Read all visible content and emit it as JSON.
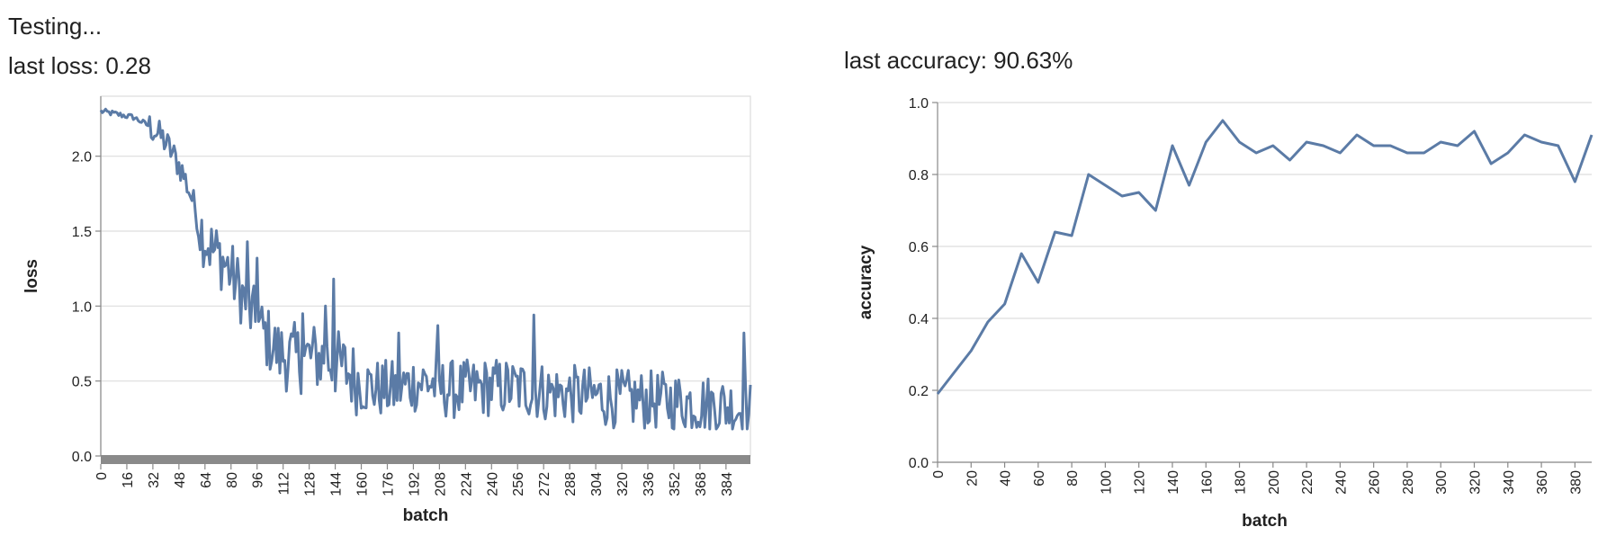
{
  "status": "Testing...",
  "loss_panel": {
    "label": "last loss: ",
    "value": "0.28"
  },
  "accuracy_panel": {
    "label": "last accuracy: ",
    "value": "90.63%"
  },
  "colors": {
    "line": "#5b7ba6",
    "grid": "#dddddd",
    "axis": "#888888",
    "text": "#222222",
    "bar": "#8a8a8a"
  },
  "chart_data": [
    {
      "id": "loss",
      "type": "line",
      "xlabel": "batch",
      "ylabel": "loss",
      "xlim": [
        0,
        399
      ],
      "ylim": [
        0,
        2.4
      ],
      "xticks": [
        0,
        16,
        32,
        48,
        64,
        80,
        96,
        112,
        128,
        144,
        160,
        176,
        192,
        208,
        224,
        240,
        256,
        272,
        288,
        304,
        320,
        336,
        352,
        368,
        384
      ],
      "yticks": [
        0.0,
        0.5,
        1.0,
        1.5,
        2.0
      ],
      "ytick_labels": [
        "0.0",
        "0.5",
        "1.0",
        "1.5",
        "2.0"
      ],
      "grid": true,
      "series": [
        {
          "keypoints": [
            [
              0,
              2.3
            ],
            [
              10,
              2.28
            ],
            [
              20,
              2.26
            ],
            [
              30,
              2.2
            ],
            [
              38,
              2.12
            ],
            [
              44,
              2.02
            ],
            [
              50,
              1.9
            ],
            [
              56,
              1.72
            ],
            [
              62,
              1.5
            ],
            [
              68,
              1.38
            ],
            [
              74,
              1.32
            ],
            [
              80,
              1.22
            ],
            [
              86,
              1.1
            ],
            [
              92,
              0.95
            ],
            [
              98,
              0.85
            ],
            [
              104,
              0.76
            ],
            [
              110,
              0.68
            ],
            [
              120,
              0.65
            ],
            [
              130,
              0.66
            ],
            [
              140,
              0.64
            ],
            [
              150,
              0.58
            ],
            [
              160,
              0.48
            ],
            [
              170,
              0.45
            ],
            [
              180,
              0.44
            ],
            [
              190,
              0.48
            ],
            [
              200,
              0.5
            ],
            [
              210,
              0.45
            ],
            [
              220,
              0.44
            ],
            [
              240,
              0.46
            ],
            [
              260,
              0.45
            ],
            [
              280,
              0.42
            ],
            [
              300,
              0.4
            ],
            [
              320,
              0.38
            ],
            [
              340,
              0.37
            ],
            [
              360,
              0.36
            ],
            [
              380,
              0.34
            ],
            [
              399,
              0.3
            ]
          ],
          "spikes": [
            [
              90,
              1.43
            ],
            [
              96,
              1.32
            ],
            [
              124,
              0.95
            ],
            [
              138,
              1.0
            ],
            [
              143,
              1.18
            ],
            [
              183,
              0.82
            ],
            [
              207,
              0.87
            ],
            [
              266,
              0.94
            ],
            [
              305,
              0.42
            ],
            [
              395,
              0.82
            ],
            [
              398,
              0.28
            ]
          ]
        }
      ]
    },
    {
      "id": "accuracy",
      "type": "line",
      "xlabel": "batch",
      "ylabel": "accuracy",
      "xlim": [
        0,
        390
      ],
      "ylim": [
        0,
        1.0
      ],
      "xticks": [
        0,
        20,
        40,
        60,
        80,
        100,
        120,
        140,
        160,
        180,
        200,
        220,
        240,
        260,
        280,
        300,
        320,
        340,
        360,
        380
      ],
      "yticks": [
        0.0,
        0.2,
        0.4,
        0.6,
        0.8,
        1.0
      ],
      "ytick_labels": [
        "0.0",
        "0.2",
        "0.4",
        "0.6",
        "0.8",
        "1.0"
      ],
      "grid": true,
      "series": [
        {
          "x": [
            0,
            10,
            20,
            30,
            40,
            50,
            60,
            70,
            80,
            90,
            100,
            110,
            120,
            130,
            140,
            150,
            160,
            170,
            180,
            190,
            200,
            210,
            220,
            230,
            240,
            250,
            260,
            270,
            280,
            290,
            300,
            310,
            320,
            330,
            340,
            350,
            360,
            370,
            380,
            390
          ],
          "y": [
            0.19,
            0.25,
            0.31,
            0.39,
            0.44,
            0.58,
            0.5,
            0.64,
            0.63,
            0.8,
            0.77,
            0.74,
            0.75,
            0.7,
            0.88,
            0.77,
            0.89,
            0.95,
            0.89,
            0.86,
            0.88,
            0.84,
            0.89,
            0.88,
            0.86,
            0.91,
            0.88,
            0.88,
            0.86,
            0.86,
            0.89,
            0.88,
            0.92,
            0.83,
            0.86,
            0.91,
            0.89,
            0.88,
            0.78,
            0.91
          ]
        }
      ]
    }
  ]
}
